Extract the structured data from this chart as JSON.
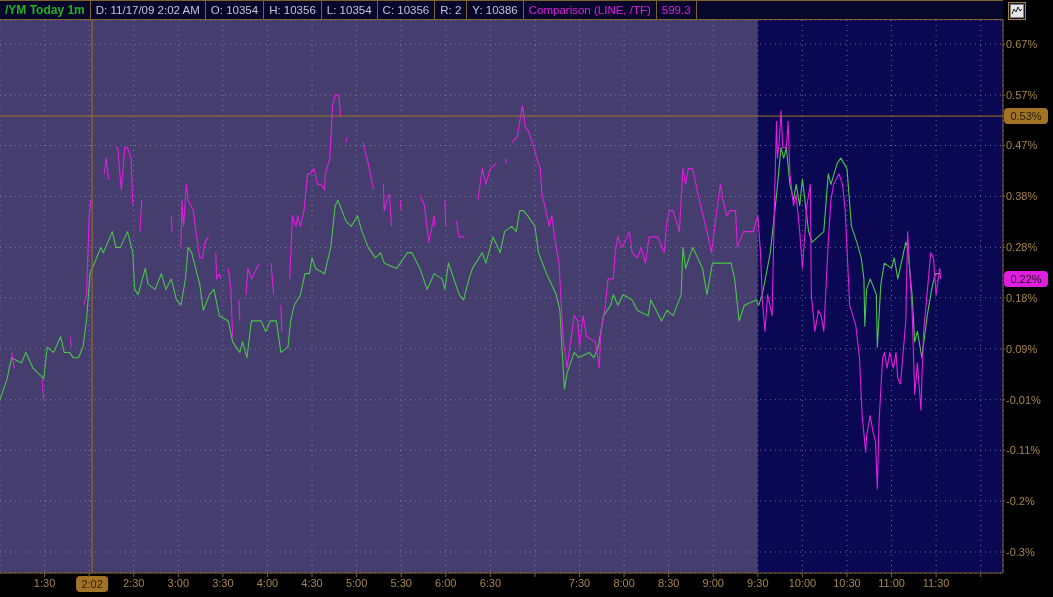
{
  "chart_data": {
    "type": "line",
    "title": "/YM Today 1m",
    "annotations": [
      "D: 11/17/09 2:02 AM",
      "O: 10354",
      "H: 10356",
      "L: 10354",
      "C: 10356",
      "R: 2",
      "Y: 10386",
      "599.3",
      {
        "text": "0.22%",
        "y": 0.22
      }
    ],
    "xlim": [
      1.0,
      12.25
    ],
    "xticks": [
      {
        "value": 1.5,
        "label": "1:30"
      },
      {
        "value": 2,
        "label": null
      },
      {
        "value": 2.5,
        "label": "2:30"
      },
      {
        "value": 3,
        "label": "3:00"
      },
      {
        "value": 3.5,
        "label": "3:30"
      },
      {
        "value": 4,
        "label": "4:00"
      },
      {
        "value": 4.5,
        "label": "4:30"
      },
      {
        "value": 5,
        "label": "5:00"
      },
      {
        "value": 5.5,
        "label": "5:30"
      },
      {
        "value": 6,
        "label": "6:00"
      },
      {
        "value": 6.5,
        "label": "6:30"
      },
      {
        "value": 7,
        "label": null
      },
      {
        "value": 7.5,
        "label": "7:30"
      },
      {
        "value": 8,
        "label": "8:00"
      },
      {
        "value": 8.5,
        "label": "8:30"
      },
      {
        "value": 9,
        "label": "9:00"
      },
      {
        "value": 9.5,
        "label": "9:30"
      },
      {
        "value": 10,
        "label": "10:00"
      },
      {
        "value": 10.5,
        "label": "10:30"
      },
      {
        "value": 11,
        "label": "11:00"
      },
      {
        "value": 11.5,
        "label": "11:30"
      },
      {
        "value": 12,
        "label": null
      }
    ],
    "ylim": [
      -0.34,
      0.713
    ],
    "yticks": [
      {
        "value": 0.667,
        "label": "0.67%"
      },
      {
        "value": 0.57,
        "label": "0.57%"
      },
      {
        "value": 0.474,
        "label": "0.47%"
      },
      {
        "value": 0.377,
        "label": "0.38%"
      },
      {
        "value": 0.28,
        "label": "0.28%"
      },
      {
        "value": 0.184,
        "label": "0.18%"
      },
      {
        "value": 0.087,
        "label": "0.09%"
      },
      {
        "value": -0.01,
        "label": "-0.01%"
      },
      {
        "value": -0.106,
        "label": "-0.11%"
      },
      {
        "value": -0.203,
        "label": "-0.2%"
      },
      {
        "value": -0.3,
        "label": "-0.3%"
      }
    ],
    "grid": true,
    "bands": [
      {
        "axis": "x",
        "from": 1.0,
        "to": 9.5,
        "color": "#443d6e"
      },
      {
        "axis": "x",
        "from": 9.5,
        "to": 12.25,
        "color": "#0b0853"
      }
    ],
    "ref_lines": [
      {
        "axis": "x",
        "value": 2.033,
        "label": "2:02",
        "color": "#a07424"
      },
      {
        "axis": "y",
        "value": 0.53,
        "label": "0.53%",
        "color": "#a07424"
      }
    ],
    "series": [
      {
        "color": "#4cc44c",
        "x": [
          1.0,
          1.08,
          1.13,
          1.24,
          1.29,
          1.37,
          1.49,
          1.53,
          1.6,
          1.68,
          1.72,
          1.78,
          1.82,
          1.88,
          1.93,
          1.97,
          2.01,
          2.06,
          2.13,
          2.16,
          2.26,
          2.3,
          2.35,
          2.43,
          2.49,
          2.51,
          2.55,
          2.63,
          2.66,
          2.74,
          2.81,
          2.86,
          2.92,
          2.98,
          3.03,
          3.08,
          3.11,
          3.15,
          3.24,
          3.28,
          3.35,
          3.4,
          3.46,
          3.56,
          3.61,
          3.69,
          3.72,
          3.77,
          3.82,
          3.93,
          3.98,
          4.03,
          4.1,
          4.15,
          4.23,
          4.26,
          4.3,
          4.37,
          4.42,
          4.47,
          4.5,
          4.54,
          4.64,
          4.71,
          4.76,
          4.79,
          4.88,
          4.94,
          5.01,
          5.06,
          5.13,
          5.21,
          5.27,
          5.31,
          5.45,
          5.57,
          5.62,
          5.71,
          5.79,
          5.87,
          5.96,
          5.99,
          6.03,
          6.09,
          6.15,
          6.2,
          6.26,
          6.3,
          6.41,
          6.45,
          6.53,
          6.61,
          6.66,
          6.74,
          6.79,
          6.83,
          6.87,
          6.92,
          7.0,
          7.04,
          7.13,
          7.24,
          7.28,
          7.3,
          7.33,
          7.36,
          7.44,
          7.49,
          7.61,
          7.66,
          7.71,
          7.77,
          7.85,
          7.88,
          7.93,
          7.99,
          8.09,
          8.15,
          8.27,
          8.3,
          8.42,
          8.48,
          8.55,
          8.64,
          8.66,
          8.69,
          8.77,
          8.88,
          8.93,
          8.99,
          9.11,
          9.2,
          9.24,
          9.29,
          9.35,
          9.48,
          9.51,
          9.55,
          9.64,
          9.71,
          9.76,
          9.79,
          9.82,
          9.86,
          9.9,
          9.93,
          9.97,
          10.0,
          10.07,
          10.11,
          10.24,
          10.29,
          10.32,
          10.39,
          10.43,
          10.5,
          10.55,
          10.61,
          10.66,
          10.69,
          10.7,
          10.72,
          10.76,
          10.83,
          10.84,
          10.88,
          10.92,
          11.0,
          11.03,
          11.07,
          11.16,
          11.18,
          11.23,
          11.26,
          11.29,
          11.34,
          11.4,
          11.45,
          11.49,
          11.55
        ],
        "values": [
          -0.01,
          0.03,
          0.07,
          0.06,
          0.08,
          0.05,
          0.03,
          0.09,
          0.08,
          0.11,
          0.08,
          0.08,
          0.07,
          0.07,
          0.09,
          0.14,
          0.23,
          0.25,
          0.28,
          0.27,
          0.31,
          0.28,
          0.28,
          0.31,
          0.27,
          0.2,
          0.19,
          0.24,
          0.21,
          0.2,
          0.23,
          0.2,
          0.22,
          0.18,
          0.17,
          0.22,
          0.28,
          0.27,
          0.21,
          0.16,
          0.19,
          0.2,
          0.15,
          0.14,
          0.1,
          0.08,
          0.1,
          0.07,
          0.14,
          0.14,
          0.12,
          0.14,
          0.14,
          0.08,
          0.09,
          0.14,
          0.17,
          0.19,
          0.23,
          0.23,
          0.26,
          0.24,
          0.23,
          0.28,
          0.36,
          0.37,
          0.33,
          0.32,
          0.34,
          0.31,
          0.28,
          0.26,
          0.27,
          0.25,
          0.24,
          0.27,
          0.27,
          0.24,
          0.2,
          0.23,
          0.22,
          0.2,
          0.25,
          0.22,
          0.19,
          0.18,
          0.22,
          0.24,
          0.27,
          0.25,
          0.3,
          0.27,
          0.31,
          0.32,
          0.31,
          0.35,
          0.35,
          0.34,
          0.32,
          0.27,
          0.23,
          0.19,
          0.16,
          0.1,
          0.01,
          0.04,
          0.08,
          0.07,
          0.08,
          0.07,
          0.09,
          0.15,
          0.17,
          0.19,
          0.17,
          0.19,
          0.18,
          0.16,
          0.15,
          0.18,
          0.14,
          0.16,
          0.15,
          0.19,
          0.28,
          0.24,
          0.28,
          0.24,
          0.19,
          0.25,
          0.25,
          0.25,
          0.22,
          0.14,
          0.17,
          0.18,
          0.17,
          0.19,
          0.27,
          0.38,
          0.47,
          0.45,
          0.47,
          0.4,
          0.37,
          0.4,
          0.36,
          0.41,
          0.31,
          0.29,
          0.31,
          0.42,
          0.4,
          0.44,
          0.45,
          0.43,
          0.32,
          0.29,
          0.26,
          0.22,
          0.13,
          0.2,
          0.22,
          0.19,
          0.09,
          0.21,
          0.25,
          0.24,
          0.26,
          0.22,
          0.29,
          0.28,
          0.19,
          0.1,
          0.12,
          0.07,
          0.15,
          0.2,
          0.23,
          0.23
        ]
      },
      {
        "name": "Comparison (LINE, /TF)",
        "color": "#e01ee0",
        "x": [
          1.13,
          1.16,
          1.2,
          1.47,
          1.49,
          1.6,
          1.79,
          1.8,
          1.85,
          1.94,
          1.97,
          1.99,
          2.0,
          2.02,
          2.1,
          2.17,
          2.19,
          2.22,
          2.26,
          2.3,
          2.32,
          2.36,
          2.4,
          2.43,
          2.47,
          2.49,
          2.53,
          2.57,
          2.59,
          2.7,
          2.92,
          2.93,
          2.98,
          3.03,
          3.04,
          3.06,
          3.09,
          3.11,
          3.17,
          3.19,
          3.24,
          3.27,
          3.3,
          3.34,
          3.38,
          3.42,
          3.43,
          3.46,
          3.48,
          3.52,
          3.56,
          3.59,
          3.61,
          3.65,
          3.68,
          3.69,
          3.72,
          3.76,
          3.78,
          3.82,
          3.91,
          3.98,
          4.04,
          4.07,
          4.11,
          4.15,
          4.16,
          4.2,
          4.25,
          4.28,
          4.32,
          4.34,
          4.37,
          4.41,
          4.45,
          4.48,
          4.52,
          4.56,
          4.6,
          4.64,
          4.65,
          4.7,
          4.73,
          4.76,
          4.8,
          4.82,
          4.85,
          4.88,
          4.89,
          4.95,
          5.07,
          5.13,
          5.19,
          5.24,
          5.3,
          5.31,
          5.36,
          5.37,
          5.39,
          5.44,
          5.49,
          5.5,
          5.6,
          5.71,
          5.76,
          5.81,
          5.87,
          5.88,
          5.94,
          5.99,
          6.0,
          6.06,
          6.12,
          6.15,
          6.21,
          6.3,
          6.36,
          6.41,
          6.45,
          6.5,
          6.57,
          6.62,
          6.67,
          6.68,
          6.71,
          6.74,
          6.8,
          6.86,
          6.87,
          6.89,
          6.93,
          6.99,
          7.02,
          7.06,
          7.08,
          7.11,
          7.16,
          7.19,
          7.22,
          7.27,
          7.29,
          7.32,
          7.36,
          7.4,
          7.44,
          7.48,
          7.5,
          7.54,
          7.58,
          7.68,
          7.72,
          7.74,
          7.79,
          7.82,
          7.88,
          7.9,
          7.93,
          7.98,
          8.06,
          8.09,
          8.15,
          8.19,
          8.24,
          8.28,
          8.38,
          8.45,
          8.48,
          8.51,
          8.55,
          8.62,
          8.66,
          8.69,
          8.72,
          8.77,
          8.83,
          8.93,
          8.98,
          9.04,
          9.08,
          9.11,
          9.15,
          9.19,
          9.25,
          9.27,
          9.34,
          9.45,
          9.5,
          9.53,
          9.55,
          9.58,
          9.61,
          9.66,
          9.68,
          9.69,
          9.71,
          9.72,
          9.74,
          9.76,
          9.78,
          9.82,
          9.84,
          9.86,
          9.9,
          9.93,
          9.97,
          10.0,
          10.03,
          10.05,
          10.09,
          10.1,
          10.14,
          10.18,
          10.21,
          10.24,
          10.29,
          10.32,
          10.35,
          10.41,
          10.45,
          10.48,
          10.53,
          10.6,
          10.64,
          10.67,
          10.71,
          10.72,
          10.76,
          10.79,
          10.82,
          10.84,
          10.86,
          10.88,
          10.9,
          10.92,
          10.95,
          10.98,
          11.02,
          11.05,
          11.07,
          11.1,
          11.16,
          11.18,
          11.23,
          11.26,
          11.29,
          11.33,
          11.34,
          11.36,
          11.44,
          11.47,
          11.5,
          11.54,
          11.55
        ],
        "values": [
          0.08,
          0.05,
          null,
          0.03,
          -0.01,
          null,
          0.11,
          0.09,
          null,
          0.17,
          0.19,
          0.29,
          0.34,
          0.37,
          null,
          0.42,
          0.45,
          0.41,
          null,
          0.47,
          0.47,
          0.39,
          0.47,
          0.47,
          0.45,
          0.36,
          null,
          0.31,
          0.37,
          null,
          0.34,
          0.31,
          null,
          0.28,
          0.37,
          0.32,
          0.4,
          0.37,
          0.35,
          0.32,
          0.26,
          0.26,
          0.29,
          0.3,
          null,
          0.27,
          0.22,
          0.23,
          0.22,
          null,
          0.24,
          0.2,
          0.11,
          null,
          0.18,
          0.14,
          null,
          0.19,
          0.24,
          0.22,
          0.25,
          null,
          0.25,
          0.19,
          null,
          0.17,
          0.12,
          null,
          0.22,
          0.34,
          0.32,
          0.34,
          0.32,
          0.35,
          0.42,
          0.42,
          0.43,
          0.4,
          0.4,
          0.39,
          0.42,
          0.45,
          0.55,
          0.57,
          0.57,
          0.53,
          null,
          0.48,
          0.49,
          null,
          0.48,
          0.44,
          0.39,
          null,
          0.4,
          0.35,
          0.38,
          0.38,
          0.32,
          null,
          0.37,
          0.35,
          null,
          0.38,
          0.36,
          0.29,
          0.34,
          0.32,
          null,
          0.37,
          0.32,
          null,
          0.33,
          0.3,
          0.3,
          null,
          0.37,
          0.43,
          0.4,
          0.43,
          0.44,
          null,
          0.45,
          0.44,
          null,
          0.48,
          0.49,
          0.55,
          0.54,
          0.51,
          0.5,
          0.47,
          0.45,
          0.43,
          0.38,
          0.36,
          0.32,
          0.34,
          0.3,
          0.25,
          0.19,
          0.1,
          0.05,
          0.1,
          0.15,
          0.14,
          0.09,
          0.15,
          0.11,
          0.1,
          0.05,
          0.12,
          0.17,
          0.22,
          0.22,
          0.27,
          0.3,
          0.28,
          0.31,
          0.27,
          0.26,
          0.28,
          0.25,
          0.3,
          0.3,
          0.27,
          0.33,
          0.35,
          0.35,
          0.31,
          0.43,
          0.4,
          0.43,
          0.43,
          0.38,
          0.31,
          0.27,
          0.35,
          0.4,
          0.37,
          0.34,
          0.35,
          0.35,
          0.28,
          0.31,
          0.31,
          0.34,
          0.27,
          0.18,
          0.12,
          0.19,
          0.15,
          0.31,
          0.39,
          0.52,
          0.45,
          0.48,
          0.54,
          0.47,
          0.47,
          0.52,
          0.42,
          0.36,
          0.38,
          0.31,
          0.24,
          0.31,
          0.36,
          0.4,
          0.19,
          0.12,
          0.16,
          0.15,
          0.12,
          0.29,
          0.37,
          0.4,
          0.42,
          0.4,
          0.35,
          0.17,
          0.13,
          0.07,
          -0.04,
          -0.11,
          -0.08,
          -0.04,
          -0.07,
          -0.09,
          -0.18,
          -0.05,
          0.01,
          0.07,
          0.08,
          0.05,
          0.08,
          0.05,
          0.08,
          0.03,
          0.02,
          0.14,
          0.31,
          0.16,
          0.0,
          0.06,
          -0.03,
          0.03,
          0.12,
          0.27,
          0.26,
          0.19,
          0.24,
          0.22
        ]
      }
    ]
  }
}
